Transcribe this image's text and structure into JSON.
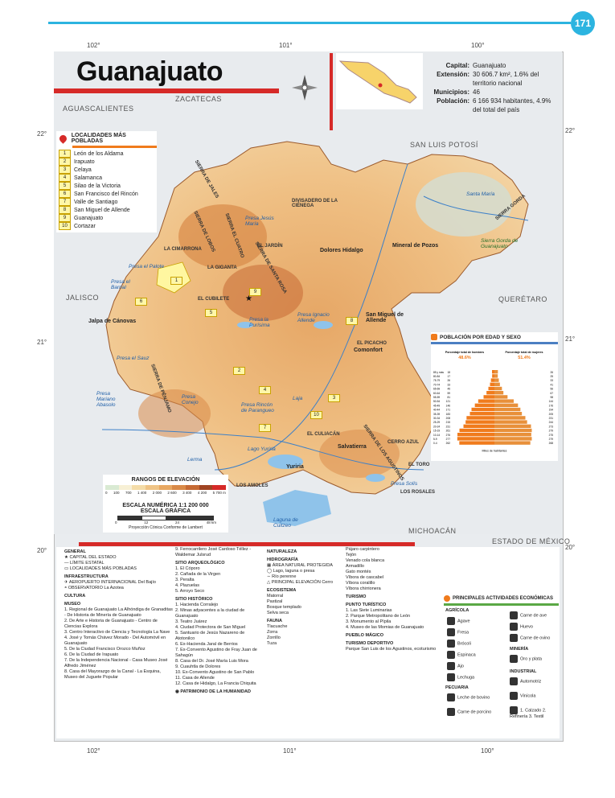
{
  "page_number": "171",
  "title": "Guanajuato",
  "info": {
    "capital_label": "Capital:",
    "capital": "Guanajuato",
    "extension_label": "Extensión:",
    "extension": "30 606.7 km², 1.6% del territorio nacional",
    "municipios_label": "Municipios:",
    "municipios": "46",
    "poblacion_label": "Población:",
    "poblacion": "6 166 934 habitantes, 4.9% del total del país"
  },
  "coords": {
    "top": [
      "102°",
      "101°",
      "100°"
    ],
    "bottom": [
      "102°",
      "101°",
      "100°"
    ],
    "left": [
      "22°",
      "21°",
      "20°"
    ],
    "right": [
      "22°",
      "21°",
      "20°"
    ]
  },
  "neighbors": [
    "AGUASCALIENTES",
    "ZACATECAS",
    "SAN LUIS POTOSÍ",
    "JALISCO",
    "QUERÉTARO",
    "MICHOACÁN",
    "ESTADO DE MÉXICO"
  ],
  "localidades": {
    "title": "LOCALIDADES MÁS POBLADAS",
    "items": [
      {
        "n": "1",
        "name": "León de los Aldama"
      },
      {
        "n": "2",
        "name": "Irapuato"
      },
      {
        "n": "3",
        "name": "Celaya"
      },
      {
        "n": "4",
        "name": "Salamanca"
      },
      {
        "n": "5",
        "name": "Silao de la Victoria"
      },
      {
        "n": "6",
        "name": "San Francisco del Rincón"
      },
      {
        "n": "7",
        "name": "Valle de Santiago"
      },
      {
        "n": "8",
        "name": "San Miguel de Allende"
      },
      {
        "n": "9",
        "name": "Guanajuato"
      },
      {
        "n": "10",
        "name": "Cortazar"
      }
    ]
  },
  "map_labels": {
    "places": [
      "Dolores Hidalgo",
      "Mineral de Pozos",
      "San Miguel de Allende",
      "Comonfort",
      "Salvatierra",
      "Yuriria",
      "Jalpa de Cánovas",
      "EL JARDÍN",
      "LA GIGANTA",
      "LA CIMARRONA",
      "EL CUBILETE",
      "EL PICACHO",
      "EL CULIACÁN",
      "CERRO AZUL",
      "LOS AMOLES",
      "LOS ROSALES",
      "DIVISADERO DE LA CIÉNEGA",
      "EL TORO"
    ],
    "water": [
      "Presa Jesús María",
      "Presa el Palote",
      "Presa el Barrial",
      "Presa la Purísima",
      "Presa Ignacio Allende",
      "Presa el Sauz",
      "Presa Mariano Abasolo",
      "Presa Conejo",
      "Presa Rincón de Parangueo",
      "Lago Yuriria",
      "Laguna de Cuitzeo",
      "Presa Solís",
      "Lerma",
      "Laja",
      "Santa María"
    ],
    "mountains": [
      "SIERRA DE JALES",
      "SIERRA DE LOBOS",
      "SIERRA DE PÉNJAMO",
      "SIERRA DE SANTA ROSA",
      "SIERRA EL CUATRO",
      "SIERRA DE LOS AGUSTINOS",
      "SIERRA GORDA",
      "Sierra Gorda de Guanajuato"
    ]
  },
  "elevation": {
    "title": "RANGOS DE ELEVACIÓN",
    "ticks": [
      "0",
      "100",
      "700",
      "1 400",
      "2 000",
      "2 600",
      "3 400",
      "4 200",
      "5 700 m"
    ],
    "colors": [
      "#d9ead3",
      "#f7f0d5",
      "#f4dca8",
      "#efc486",
      "#e8a862",
      "#d98a48",
      "#c66a34",
      "#a04422",
      "#d62a28"
    ]
  },
  "scale": {
    "numeric": "ESCALA NUMÉRICA 1:1 200 000",
    "graphic": "ESCALA GRÁFICA",
    "ticks": [
      "0",
      "12",
      "24",
      "48 km"
    ],
    "projection": "Proyección Cónica Conforme de Lambert"
  },
  "population": {
    "title": "POBLACIÓN POR EDAD Y SEXO",
    "men_label": "Porcentaje total de hombres",
    "men_pct": "48.6%",
    "women_label": "Porcentaje total de mujeres",
    "women_pct": "51.4%",
    "axis_label": "Miles de habitantes",
    "ages": [
      "85 y más",
      "80-84",
      "75-79",
      "70-74",
      "65-69",
      "60-64",
      "55-59",
      "50-54",
      "45-49",
      "40-44",
      "35-39",
      "30-34",
      "25-29",
      "20-24",
      "15-19",
      "10-14",
      "5-9",
      "0-4"
    ],
    "men": [
      18,
      17,
      26,
      33,
      45,
      59,
      81,
      121,
      146,
      171,
      183,
      208,
      215,
      231,
      261,
      276,
      277,
      262
    ],
    "women": [
      26,
      25,
      33,
      41,
      56,
      67,
      98,
      144,
      176,
      194,
      205,
      231,
      244,
      273,
      279,
      275,
      279,
      268
    ]
  },
  "legend": {
    "general": "GENERAL",
    "capital": "CAPITAL DEL ESTADO",
    "limite": "LÍMITE ESTATAL",
    "localidades": "LOCALIDADES MÁS POBLADAS",
    "infra": "INFRAESTRUCTURA",
    "aeropuerto": "AEROPUERTO INTERNACIONAL Del Bajío",
    "observatorio": "OBSERVATORIO La Azotea",
    "cultura": "CULTURA",
    "museo": "MUSEO",
    "museos": [
      "1. Regional de Guanajuato La Alhóndiga de Granaditas - De Historia de Minería de Guanajuato",
      "2. De Arte e Historia de Guanajuato - Centro de Ciencias Explora",
      "3. Centro Interactivo de Ciencia y Tecnología La Nave",
      "4. José y Tomás Chávez Morado - Del Automóvil en Guanajuato",
      "5. De la Ciudad Francisco Orozco Muñoz",
      "6. De la Ciudad de Irapuato",
      "7. De la Independencia Nacional - Casa Museo José Alfredo Jiménez",
      "8. Casa del Mayorazgo de la Canal - La Esquina, Museo del Juguete Popular"
    ],
    "ferrocarril": "9. Ferrocarrilero José Cardoso Téllez - Waldemar Julsrud",
    "arqueo": "SITIO ARQUEOLÓGICO",
    "arqueo_items": [
      "1. El Cóporo",
      "2. Cañada de la Virgen",
      "3. Peralta",
      "4. Plazuelas",
      "5. Arroyo Seco"
    ],
    "historico": "SITIO HISTÓRICO",
    "historico_items": [
      "1. Hacienda Corralejo",
      "2. Minas adyacentes a la ciudad de Guanajuato",
      "3. Teatro Juárez",
      "4. Ciudad Protectora de San Miguel",
      "5. Santuario de Jesús Nazareno de Atotonilco",
      "6. Ex-Hacienda Jaral de Berrios",
      "7. Ex-Convento Agustino de Fray Juan de Sahagún",
      "8. Casa del Dr. José María Luis Mora",
      "9. Cuauhtla de Dolores",
      "10. Ex-Convento Agustino de San Pablo",
      "11. Casa de Allende",
      "12. Casa de Hidalgo, La Francia Chiquita"
    ],
    "patrimonio": "PATRIMONIO DE LA HUMANIDAD",
    "naturaleza": "NATURALEZA",
    "hidrografia": "HIDROGRAFÍA",
    "area_protegida": "ÁREA NATURAL PROTEGIDA",
    "lago": "Lago, laguna o presa",
    "rio": "Río perenne",
    "elevacion": "PRINCIPAL ELEVACIÓN Cerro",
    "ecosistema": "ECOSISTEMA",
    "eco_items": [
      "Matorral",
      "Pastizal",
      "Bosque templado",
      "Selva seca"
    ],
    "fauna": "FAUNA",
    "fauna_items": [
      "Tlacuache",
      "Zorra",
      "Zorrillo",
      "Tuza"
    ],
    "fauna2": [
      "Pájaro carpintero",
      "Tejón",
      "Venado cola blanca",
      "Armadillo",
      "Gato montés",
      "Víbora de cascabel",
      "Víbora coralillo",
      "Víbora chirrionera"
    ],
    "turismo": "TURISMO",
    "punto": "PUNTO TURÍSTICO",
    "punto_items": [
      "1. Las Siete Luminarias",
      "2. Parque Metropolitano de León",
      "3. Monumento al Pípila",
      "4. Museo de las Momias de Guanajuato"
    ],
    "pueblo": "PUEBLO MÁGICO",
    "deportivo": "TURISMO DEPORTIVO",
    "deportivo_item": "Parque San Luis de los Agustinos, ecoturismo"
  },
  "economia": {
    "title": "PRINCIPALES ACTIVIDADES ECONÓMICAS",
    "agricola": "AGRÍCOLA",
    "agri_items": [
      "Agave",
      "Fresa",
      "Brócoli",
      "Espinaca",
      "Ajo",
      "Lechuga"
    ],
    "carne_ave": "Carne de ave",
    "huevo": "Huevo",
    "carne_ovino": "Carne de ovino",
    "mineria": "MINERÍA",
    "min_item": "Oro y plata",
    "industrial": "INDUSTRIAL",
    "ind_items": [
      "Automotriz",
      "Vinícola",
      "1. Calzado 2. Refinería 3. Textil"
    ],
    "pecuaria": "PECUARIA",
    "pec_items": [
      "Leche de bovino",
      "Carne de porcino"
    ]
  }
}
